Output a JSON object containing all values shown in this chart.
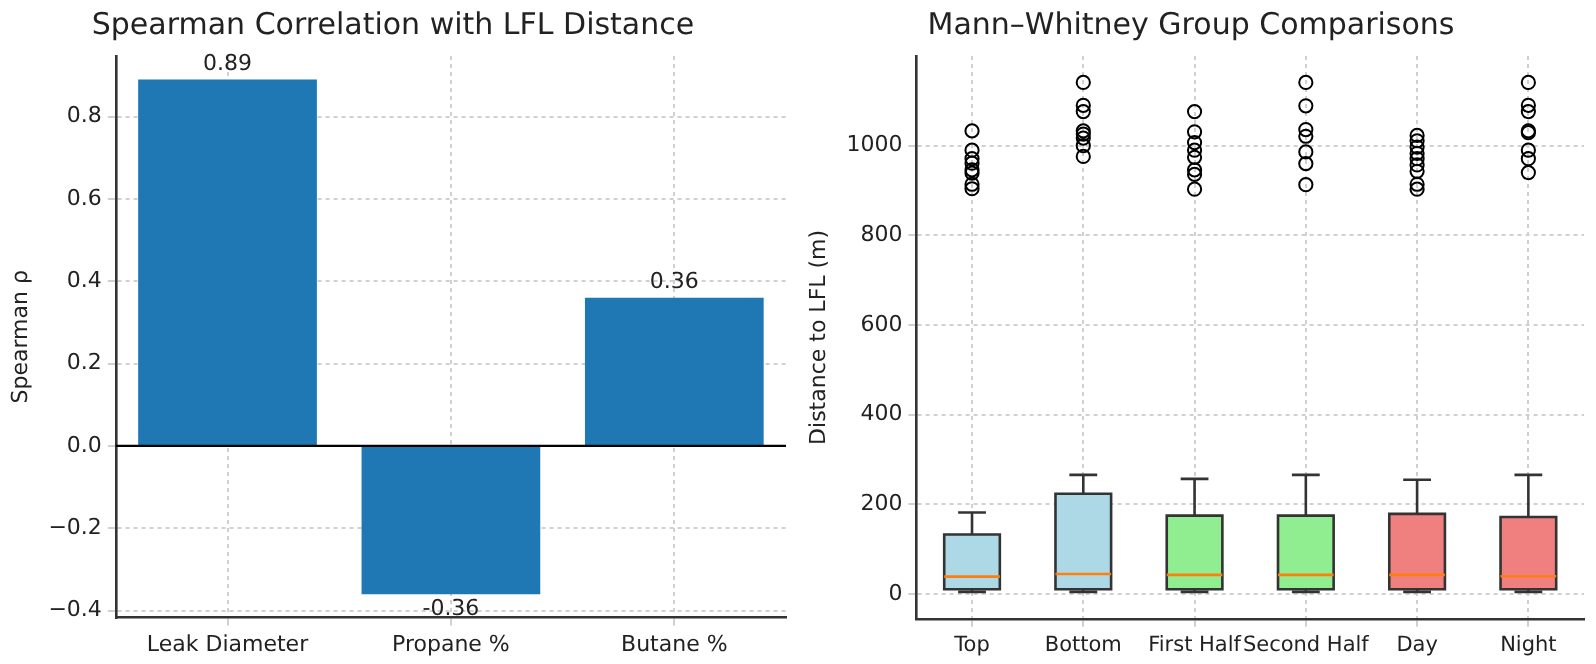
{
  "chart_data": [
    {
      "type": "bar",
      "title": "Spearman Correlation with LFL Distance",
      "ylabel": "Spearman ρ",
      "categories": [
        "Leak Diameter",
        "Propane %",
        "Butane %"
      ],
      "values": [
        0.89,
        -0.36,
        0.36
      ],
      "color": "#1f77b4",
      "data_labels": true,
      "ylim": [
        -0.417,
        0.947
      ],
      "yticks": [
        {
          "value": -0.4,
          "label": "−0.4"
        },
        {
          "value": -0.2,
          "label": "−0.2"
        },
        {
          "value": 0,
          "label": "0.0"
        },
        0.2,
        0.4,
        0.6,
        0.8
      ],
      "ref_lines": [
        {
          "axis": "y",
          "value": 0,
          "color": "#000000"
        }
      ],
      "grid": true
    },
    {
      "type": "box",
      "title": "Mann–Whitney Group Comparisons",
      "ylabel": "Distance to LFL (m)",
      "categories": [
        "Top",
        "Bottom",
        "First Half",
        "Second Half",
        "Day",
        "Night"
      ],
      "colors": [
        "#add8e6",
        "#add8e6",
        "#90ee90",
        "#90ee90",
        "#f08080",
        "#f08080"
      ],
      "boxes": [
        {
          "low": 5,
          "q1": 11,
          "median": 39,
          "q3": 133,
          "high": 182,
          "outliers": [
            1033,
            990,
            971,
            961,
            946,
            939,
            914,
            904
          ]
        },
        {
          "low": 5,
          "q1": 11,
          "median": 45,
          "q3": 224,
          "high": 266,
          "outliers": [
            1141,
            1090,
            1076,
            1033,
            1026,
            1017,
            1000,
            976
          ]
        },
        {
          "low": 5,
          "q1": 11,
          "median": 43,
          "q3": 175,
          "high": 257,
          "outliers": [
            1076,
            1031,
            1007,
            990,
            974,
            946,
            936,
            903
          ]
        },
        {
          "low": 5,
          "q1": 11,
          "median": 43,
          "q3": 175,
          "high": 266,
          "outliers": [
            1141,
            1089,
            1036,
            1021,
            986,
            960,
            913
          ]
        },
        {
          "low": 5,
          "q1": 11,
          "median": 43,
          "q3": 179,
          "high": 255,
          "outliers": [
            1023,
            1011,
            997,
            983,
            971,
            957,
            943,
            914,
            903
          ]
        },
        {
          "low": 5,
          "q1": 11,
          "median": 40,
          "q3": 172,
          "high": 266,
          "outliers": [
            1141,
            1090,
            1076,
            1033,
            1029,
            990,
            971,
            940
          ]
        }
      ],
      "ylim": [
        -55,
        1200
      ],
      "yticks": [
        0,
        200,
        400,
        600,
        800,
        1000
      ],
      "grid": true
    }
  ]
}
